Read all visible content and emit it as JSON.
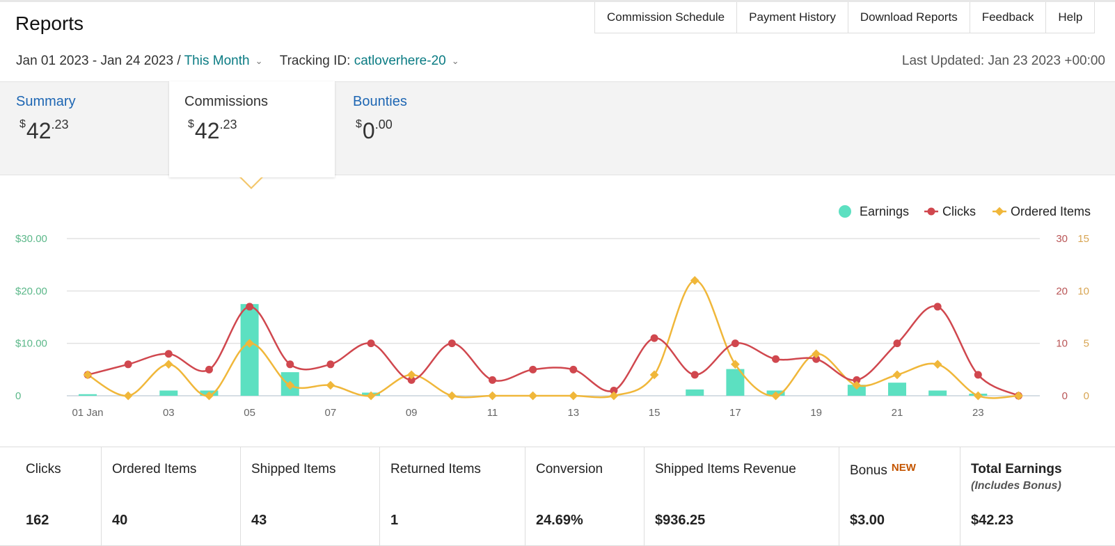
{
  "header": {
    "title": "Reports",
    "nav": [
      "Commission Schedule",
      "Payment History",
      "Download Reports",
      "Feedback",
      "Help"
    ]
  },
  "filters": {
    "date_range": "Jan 01 2023 - Jan 24 2023 /",
    "period": "This Month",
    "tracking_label": "Tracking ID:",
    "tracking_id": "catloverhere-20",
    "last_updated": "Last Updated: Jan 23 2023 +00:00"
  },
  "tabs": [
    {
      "name": "Summary",
      "currency": "$",
      "whole": "42",
      "cents": ".23",
      "active": false
    },
    {
      "name": "Commissions",
      "currency": "$",
      "whole": "42",
      "cents": ".23",
      "active": true
    },
    {
      "name": "Bounties",
      "currency": "$",
      "whole": "0",
      "cents": ".00",
      "active": false
    }
  ],
  "chart_data": {
    "type": "bar",
    "legend": [
      "Earnings",
      "Clicks",
      "Ordered Items"
    ],
    "legend_position": "top-right",
    "colors": {
      "earnings": "#5ce0c1",
      "clicks": "#d0474e",
      "ordered_items": "#f0b73a",
      "left_axis": "#5cb88a",
      "right_axis_clicks": "#b95556",
      "right_axis_items": "#d8a553"
    },
    "x": [
      "01",
      "02",
      "03",
      "04",
      "05",
      "06",
      "07",
      "08",
      "09",
      "10",
      "11",
      "12",
      "13",
      "14",
      "15",
      "16",
      "17",
      "18",
      "19",
      "20",
      "21",
      "22",
      "23",
      "24"
    ],
    "x_tick_labels": [
      "01 Jan",
      "03",
      "05",
      "07",
      "09",
      "11",
      "13",
      "15",
      "17",
      "19",
      "21",
      "23"
    ],
    "y_left_ticks": [
      "$30.00",
      "$20.00",
      "$10.00",
      "0"
    ],
    "y_left_range": [
      0,
      30
    ],
    "y_right_clicks_ticks": [
      "30",
      "20",
      "10",
      "0"
    ],
    "y_right_clicks_range": [
      0,
      30
    ],
    "y_right_items_ticks": [
      "15",
      "10",
      "5",
      "0"
    ],
    "y_right_items_range": [
      0,
      15
    ],
    "series": [
      {
        "name": "Earnings",
        "type": "bar",
        "values": [
          0.3,
          0,
          1.0,
          1.0,
          17.5,
          4.5,
          0,
          0.6,
          0,
          0,
          0,
          0,
          0,
          0,
          0,
          1.2,
          5.1,
          1.0,
          0,
          2.1,
          2.5,
          1.0,
          0.4,
          0
        ]
      },
      {
        "name": "Clicks",
        "type": "line",
        "values": [
          4,
          6,
          8,
          5,
          17,
          6,
          6,
          10,
          3,
          10,
          3,
          5,
          5,
          1,
          11,
          4,
          10,
          7,
          7,
          3,
          10,
          17,
          4,
          0
        ]
      },
      {
        "name": "Ordered Items",
        "type": "line",
        "values": [
          2,
          0,
          3,
          0,
          5,
          1,
          1,
          0,
          2,
          0,
          0,
          0,
          0,
          0,
          2,
          11,
          3,
          0,
          4,
          1,
          2,
          3,
          0,
          0
        ]
      }
    ]
  },
  "stats": [
    {
      "label": "Clicks",
      "value": "162"
    },
    {
      "label": "Ordered Items",
      "value": "40"
    },
    {
      "label": "Shipped Items",
      "value": "43"
    },
    {
      "label": "Returned Items",
      "value": "1"
    },
    {
      "label": "Conversion",
      "value": "24.69%"
    },
    {
      "label": "Shipped Items Revenue",
      "value": "$936.25"
    },
    {
      "label": "Bonus",
      "badge": "NEW",
      "value": "$3.00"
    },
    {
      "label": "Total Earnings",
      "sub": "(Includes Bonus)",
      "value": "$42.23"
    }
  ]
}
